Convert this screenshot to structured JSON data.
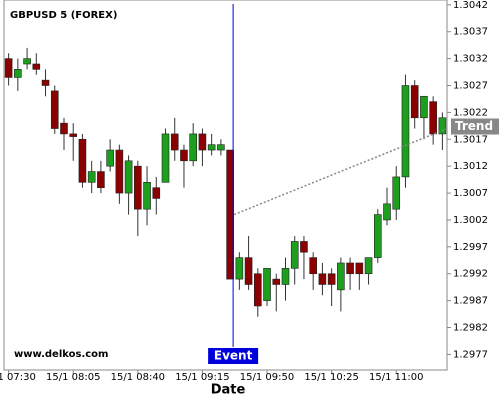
{
  "chart_data": {
    "type": "candlestick",
    "title": "GBPUSD 5 (FOREX)",
    "watermark": "www.delkos.com",
    "x_label": "Date",
    "categories": [
      "15/1 07:30",
      null,
      null,
      null,
      null,
      null,
      null,
      "15/1 08:05",
      null,
      null,
      null,
      null,
      null,
      null,
      "15/1 08:40",
      null,
      null,
      null,
      null,
      null,
      null,
      "15/1 09:15",
      null,
      null,
      null,
      null,
      null,
      null,
      "15/1 09:50",
      null,
      null,
      null,
      null,
      null,
      null,
      "15/1 10:25",
      null,
      null,
      null,
      null,
      null,
      null,
      "15/1 11:00",
      null,
      null,
      null,
      null,
      null
    ],
    "open": [
      1.3032,
      1.30285,
      1.3031,
      1.3031,
      1.3028,
      1.3026,
      1.302,
      1.3018,
      1.3017,
      1.3009,
      1.3011,
      1.3012,
      1.3015,
      1.3007,
      1.3012,
      1.3004,
      1.3008,
      1.3009,
      1.3018,
      1.3015,
      1.3013,
      1.3018,
      1.3015,
      1.3015,
      1.3015,
      1.2991,
      1.2995,
      1.2992,
      1.2987,
      1.2991,
      1.299,
      1.2993,
      1.2998,
      1.2995,
      1.2992,
      1.2992,
      1.2989,
      1.2994,
      1.2994,
      1.2992,
      1.2995,
      1.3002,
      1.3004,
      1.301,
      1.3027,
      1.3021,
      1.3024,
      1.3018
    ],
    "high": [
      1.3033,
      1.3032,
      1.3034,
      1.3033,
      1.303,
      1.3027,
      1.3021,
      1.302,
      1.3018,
      1.3013,
      1.3013,
      1.3017,
      1.3016,
      1.3014,
      1.3013,
      1.3012,
      1.301,
      1.3019,
      1.3021,
      1.3016,
      1.302,
      1.3019,
      1.3018,
      1.3017,
      1.3015,
      1.2996,
      1.2999,
      1.2993,
      1.2993,
      1.2992,
      1.2995,
      1.2999,
      1.2999,
      1.2996,
      1.2994,
      1.2993,
      1.2995,
      1.2995,
      1.2994,
      1.2995,
      1.3004,
      1.3008,
      1.3012,
      1.3029,
      1.3028,
      1.3025,
      1.3025,
      1.3022
    ],
    "low": [
      1.3027,
      1.3026,
      1.303,
      1.3029,
      1.3025,
      1.3018,
      1.3015,
      1.3013,
      1.3008,
      1.3007,
      1.3007,
      1.3011,
      1.3005,
      1.3003,
      1.2999,
      1.3001,
      1.3003,
      1.3009,
      1.3013,
      1.3008,
      1.3012,
      1.3012,
      1.3014,
      1.3014,
      1.2991,
      1.2989,
      1.2989,
      1.2984,
      1.2986,
      1.2985,
      1.2987,
      1.299,
      1.2991,
      1.2989,
      1.2988,
      1.2986,
      1.2985,
      1.2989,
      1.2989,
      1.299,
      1.2994,
      1.3001,
      1.3002,
      1.3008,
      1.3019,
      1.3017,
      1.3016,
      1.3015
    ],
    "close": [
      1.30285,
      1.303,
      1.3032,
      1.303,
      1.3027,
      1.3019,
      1.3018,
      1.30175,
      1.3009,
      1.3011,
      1.3008,
      1.3015,
      1.3007,
      1.3013,
      1.3004,
      1.3009,
      1.3006,
      1.3018,
      1.3015,
      1.3013,
      1.3018,
      1.3015,
      1.3016,
      1.3016,
      1.2991,
      1.2995,
      1.299,
      1.2986,
      1.2993,
      1.299,
      1.2993,
      1.2998,
      1.2996,
      1.2992,
      1.299,
      1.299,
      1.2994,
      1.2992,
      1.2992,
      1.2995,
      1.3003,
      1.3005,
      1.301,
      1.3027,
      1.3021,
      1.3025,
      1.3018,
      1.3021
    ],
    "up_color": "#1e9e1e",
    "down_color": "#8b0000",
    "ylim": [
      1.29741,
      1.30429
    ],
    "yticks": [
      1.3042,
      1.3037,
      1.3032,
      1.3027,
      1.3022,
      1.3017,
      1.3012,
      1.3007,
      1.3002,
      1.2997,
      1.2992,
      1.2987,
      1.2982,
      1.2977
    ],
    "event": {
      "label": "Event",
      "index": 24,
      "color": "#0000dd"
    },
    "trend": {
      "label": "Trend",
      "start_index": 24,
      "start_value": 1.3003,
      "end_index": 47,
      "end_value": 1.3019,
      "color": "#888888"
    }
  }
}
